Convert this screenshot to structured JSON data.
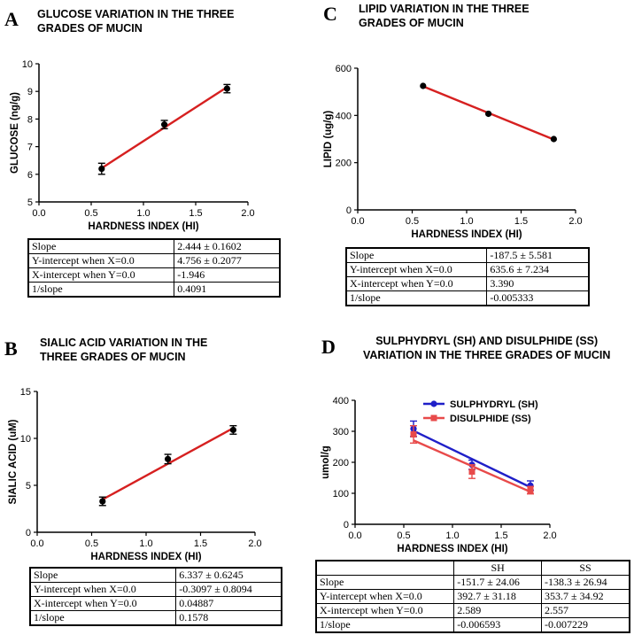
{
  "panels": {
    "A": {
      "letter": "A",
      "title": "GLUCOSE VARIATION IN THE THREE\nGRADES OF MUCIN",
      "stats": [
        {
          "label": "Slope",
          "value": "2.444 ± 0.1602"
        },
        {
          "label": "Y-intercept when X=0.0",
          "value": "4.756 ± 0.2077"
        },
        {
          "label": "X-intercept when Y=0.0",
          "value": "-1.946"
        },
        {
          "label": "1/slope",
          "value": "0.4091"
        }
      ]
    },
    "B": {
      "letter": "B",
      "title": "SIALIC ACID VARIATION IN THE\nTHREE GRADES OF MUCIN",
      "stats": [
        {
          "label": "Slope",
          "value": "6.337 ± 0.6245"
        },
        {
          "label": "Y-intercept when X=0.0",
          "value": "-0.3097 ± 0.8094"
        },
        {
          "label": "X-intercept when Y=0.0",
          "value": "0.04887"
        },
        {
          "label": "1/slope",
          "value": "0.1578"
        }
      ]
    },
    "C": {
      "letter": "C",
      "title": "LIPID VARIATION IN THE THREE\nGRADES OF MUCIN",
      "stats": [
        {
          "label": "Slope",
          "value": "-187.5 ± 5.581"
        },
        {
          "label": "Y-intercept when X=0.0",
          "value": "635.6 ± 7.234"
        },
        {
          "label": "X-intercept when Y=0.0",
          "value": "3.390"
        },
        {
          "label": "1/slope",
          "value": "-0.005333"
        }
      ]
    },
    "D": {
      "letter": "D",
      "title": "SULPHYDRYL (SH) AND DISULPHIDE (SS)\nVARIATION IN THE THREE GRADES OF MUCIN",
      "stats_header": [
        "",
        "SH",
        "SS"
      ],
      "stats": [
        {
          "label": "Slope",
          "sh": "-151.7 ± 24.06",
          "ss": "-138.3 ± 26.94"
        },
        {
          "label": "Y-intercept when X=0.0",
          "sh": "392.7 ± 31.18",
          "ss": "353.7 ± 34.92"
        },
        {
          "label": "X-intercept when Y=0.0",
          "sh": "2.589",
          "ss": "2.557"
        },
        {
          "label": "1/slope",
          "sh": "-0.006593",
          "ss": "-0.007229"
        }
      ]
    }
  },
  "chart_data": [
    {
      "id": "A",
      "type": "scatter",
      "xlabel": "HARDNESS INDEX (HI)",
      "ylabel": "GLUCOSE (ng/g)",
      "xlim": [
        0.0,
        2.0
      ],
      "ylim": [
        5,
        10
      ],
      "xticks": [
        0.0,
        0.5,
        1.0,
        1.5,
        2.0
      ],
      "xtick_labels": [
        "0.0",
        "0.5",
        "1.0",
        "1.5",
        "2.0"
      ],
      "yticks": [
        5,
        6,
        7,
        8,
        9,
        10
      ],
      "ytick_labels": [
        "5",
        "6",
        "7",
        "8",
        "9",
        "10"
      ],
      "series": [
        {
          "name": "GLUCOSE",
          "x": [
            0.6,
            1.2,
            1.8
          ],
          "y": [
            6.2,
            7.8,
            9.1
          ],
          "err": [
            0.2,
            0.15,
            0.15
          ],
          "fit": {
            "slope": 2.444,
            "intercept": 4.756
          },
          "point_color": "#000000",
          "line_color": "#d62020",
          "marker": "circle"
        }
      ]
    },
    {
      "id": "B",
      "type": "scatter",
      "xlabel": "HARDNESS INDEX (HI)",
      "ylabel": "SIALIC ACID (uM)",
      "xlim": [
        0.0,
        2.0
      ],
      "ylim": [
        0,
        15
      ],
      "xticks": [
        0.0,
        0.5,
        1.0,
        1.5,
        2.0
      ],
      "xtick_labels": [
        "0.0",
        "0.5",
        "1.0",
        "1.5",
        "2.0"
      ],
      "yticks": [
        0,
        5,
        10,
        15
      ],
      "ytick_labels": [
        "0",
        "5",
        "10",
        "15"
      ],
      "series": [
        {
          "name": "SIALIC ACID",
          "x": [
            0.6,
            1.2,
            1.8
          ],
          "y": [
            3.3,
            7.8,
            10.9
          ],
          "err": [
            0.45,
            0.5,
            0.45
          ],
          "fit": {
            "slope": 6.337,
            "intercept": -0.3097
          },
          "point_color": "#000000",
          "line_color": "#d62020",
          "marker": "circle"
        }
      ]
    },
    {
      "id": "C",
      "type": "scatter",
      "xlabel": "HARDNESS INDEX (HI)",
      "ylabel": "LIPID (ug/g)",
      "xlim": [
        0.0,
        2.0
      ],
      "ylim": [
        0,
        600
      ],
      "xticks": [
        0.0,
        0.5,
        1.0,
        1.5,
        2.0
      ],
      "xtick_labels": [
        "0.0",
        "0.5",
        "1.0",
        "1.5",
        "2.0"
      ],
      "yticks": [
        0,
        200,
        400,
        600
      ],
      "ytick_labels": [
        "0",
        "200",
        "400",
        "600"
      ],
      "series": [
        {
          "name": "LIPID",
          "x": [
            0.6,
            1.2,
            1.8
          ],
          "y": [
            525,
            407,
            300
          ],
          "err": [
            0,
            0,
            0
          ],
          "fit": {
            "slope": -187.5,
            "intercept": 635.6
          },
          "point_color": "#000000",
          "line_color": "#d62020",
          "marker": "circle"
        }
      ]
    },
    {
      "id": "D",
      "type": "scatter",
      "xlabel": "HARDNESS INDEX (HI)",
      "ylabel": "umol/g",
      "xlim": [
        0.0,
        2.0
      ],
      "ylim": [
        0,
        400
      ],
      "xticks": [
        0.0,
        0.5,
        1.0,
        1.5,
        2.0
      ],
      "xtick_labels": [
        "0.0",
        "0.5",
        "1.0",
        "1.5",
        "2.0"
      ],
      "yticks": [
        0,
        100,
        200,
        300,
        400
      ],
      "ytick_labels": [
        "0",
        "100",
        "200",
        "300",
        "400"
      ],
      "legend": "top-right",
      "series": [
        {
          "name": "SULPHYDRYL (SH)",
          "x": [
            0.6,
            1.2,
            1.8
          ],
          "y": [
            308,
            192,
            125
          ],
          "err": [
            25,
            15,
            15
          ],
          "fit": {
            "slope": -151.7,
            "intercept": 392.7
          },
          "point_color": "#1f1fc8",
          "line_color": "#1f1fc8",
          "marker": "circle"
        },
        {
          "name": "DISULPHIDE (SS)",
          "x": [
            0.6,
            1.2,
            1.8
          ],
          "y": [
            290,
            170,
            110
          ],
          "err": [
            28,
            22,
            12
          ],
          "fit": {
            "slope": -138.3,
            "intercept": 353.7
          },
          "point_color": "#e84a4a",
          "line_color": "#e84a4a",
          "marker": "square"
        }
      ]
    }
  ]
}
